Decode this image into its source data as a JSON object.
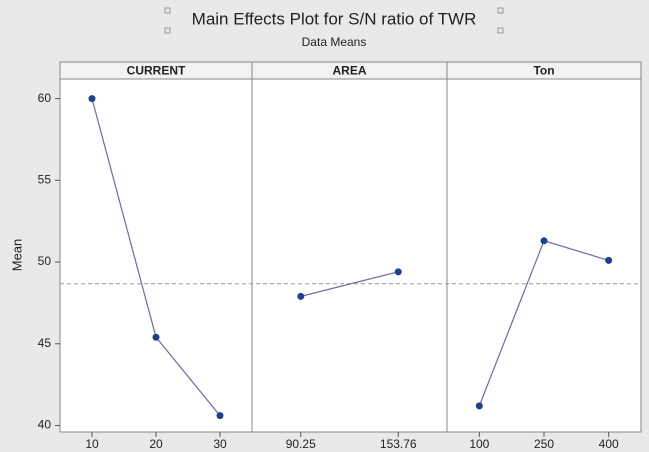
{
  "chart_data": {
    "type": "line",
    "title": "Main Effects Plot for S/N ratio of TWR",
    "subtitle": "Data Means",
    "ylabel": "Mean",
    "panels": [
      {
        "name": "CURRENT",
        "categories": [
          "10",
          "20",
          "30"
        ],
        "values": [
          60.0,
          45.4,
          40.6
        ]
      },
      {
        "name": "AREA",
        "categories": [
          "90.25",
          "153.76"
        ],
        "values": [
          47.9,
          49.4
        ]
      },
      {
        "name": "Ton",
        "categories": [
          "100",
          "250",
          "400"
        ],
        "values": [
          41.2,
          51.3,
          50.1
        ]
      }
    ],
    "reference_line": 48.67,
    "color": "#1f3f8f",
    "line_color": "#6b6ba8",
    "ylim": [
      39.6,
      61.2
    ],
    "yticks": [
      40,
      45,
      50,
      55,
      60
    ]
  }
}
